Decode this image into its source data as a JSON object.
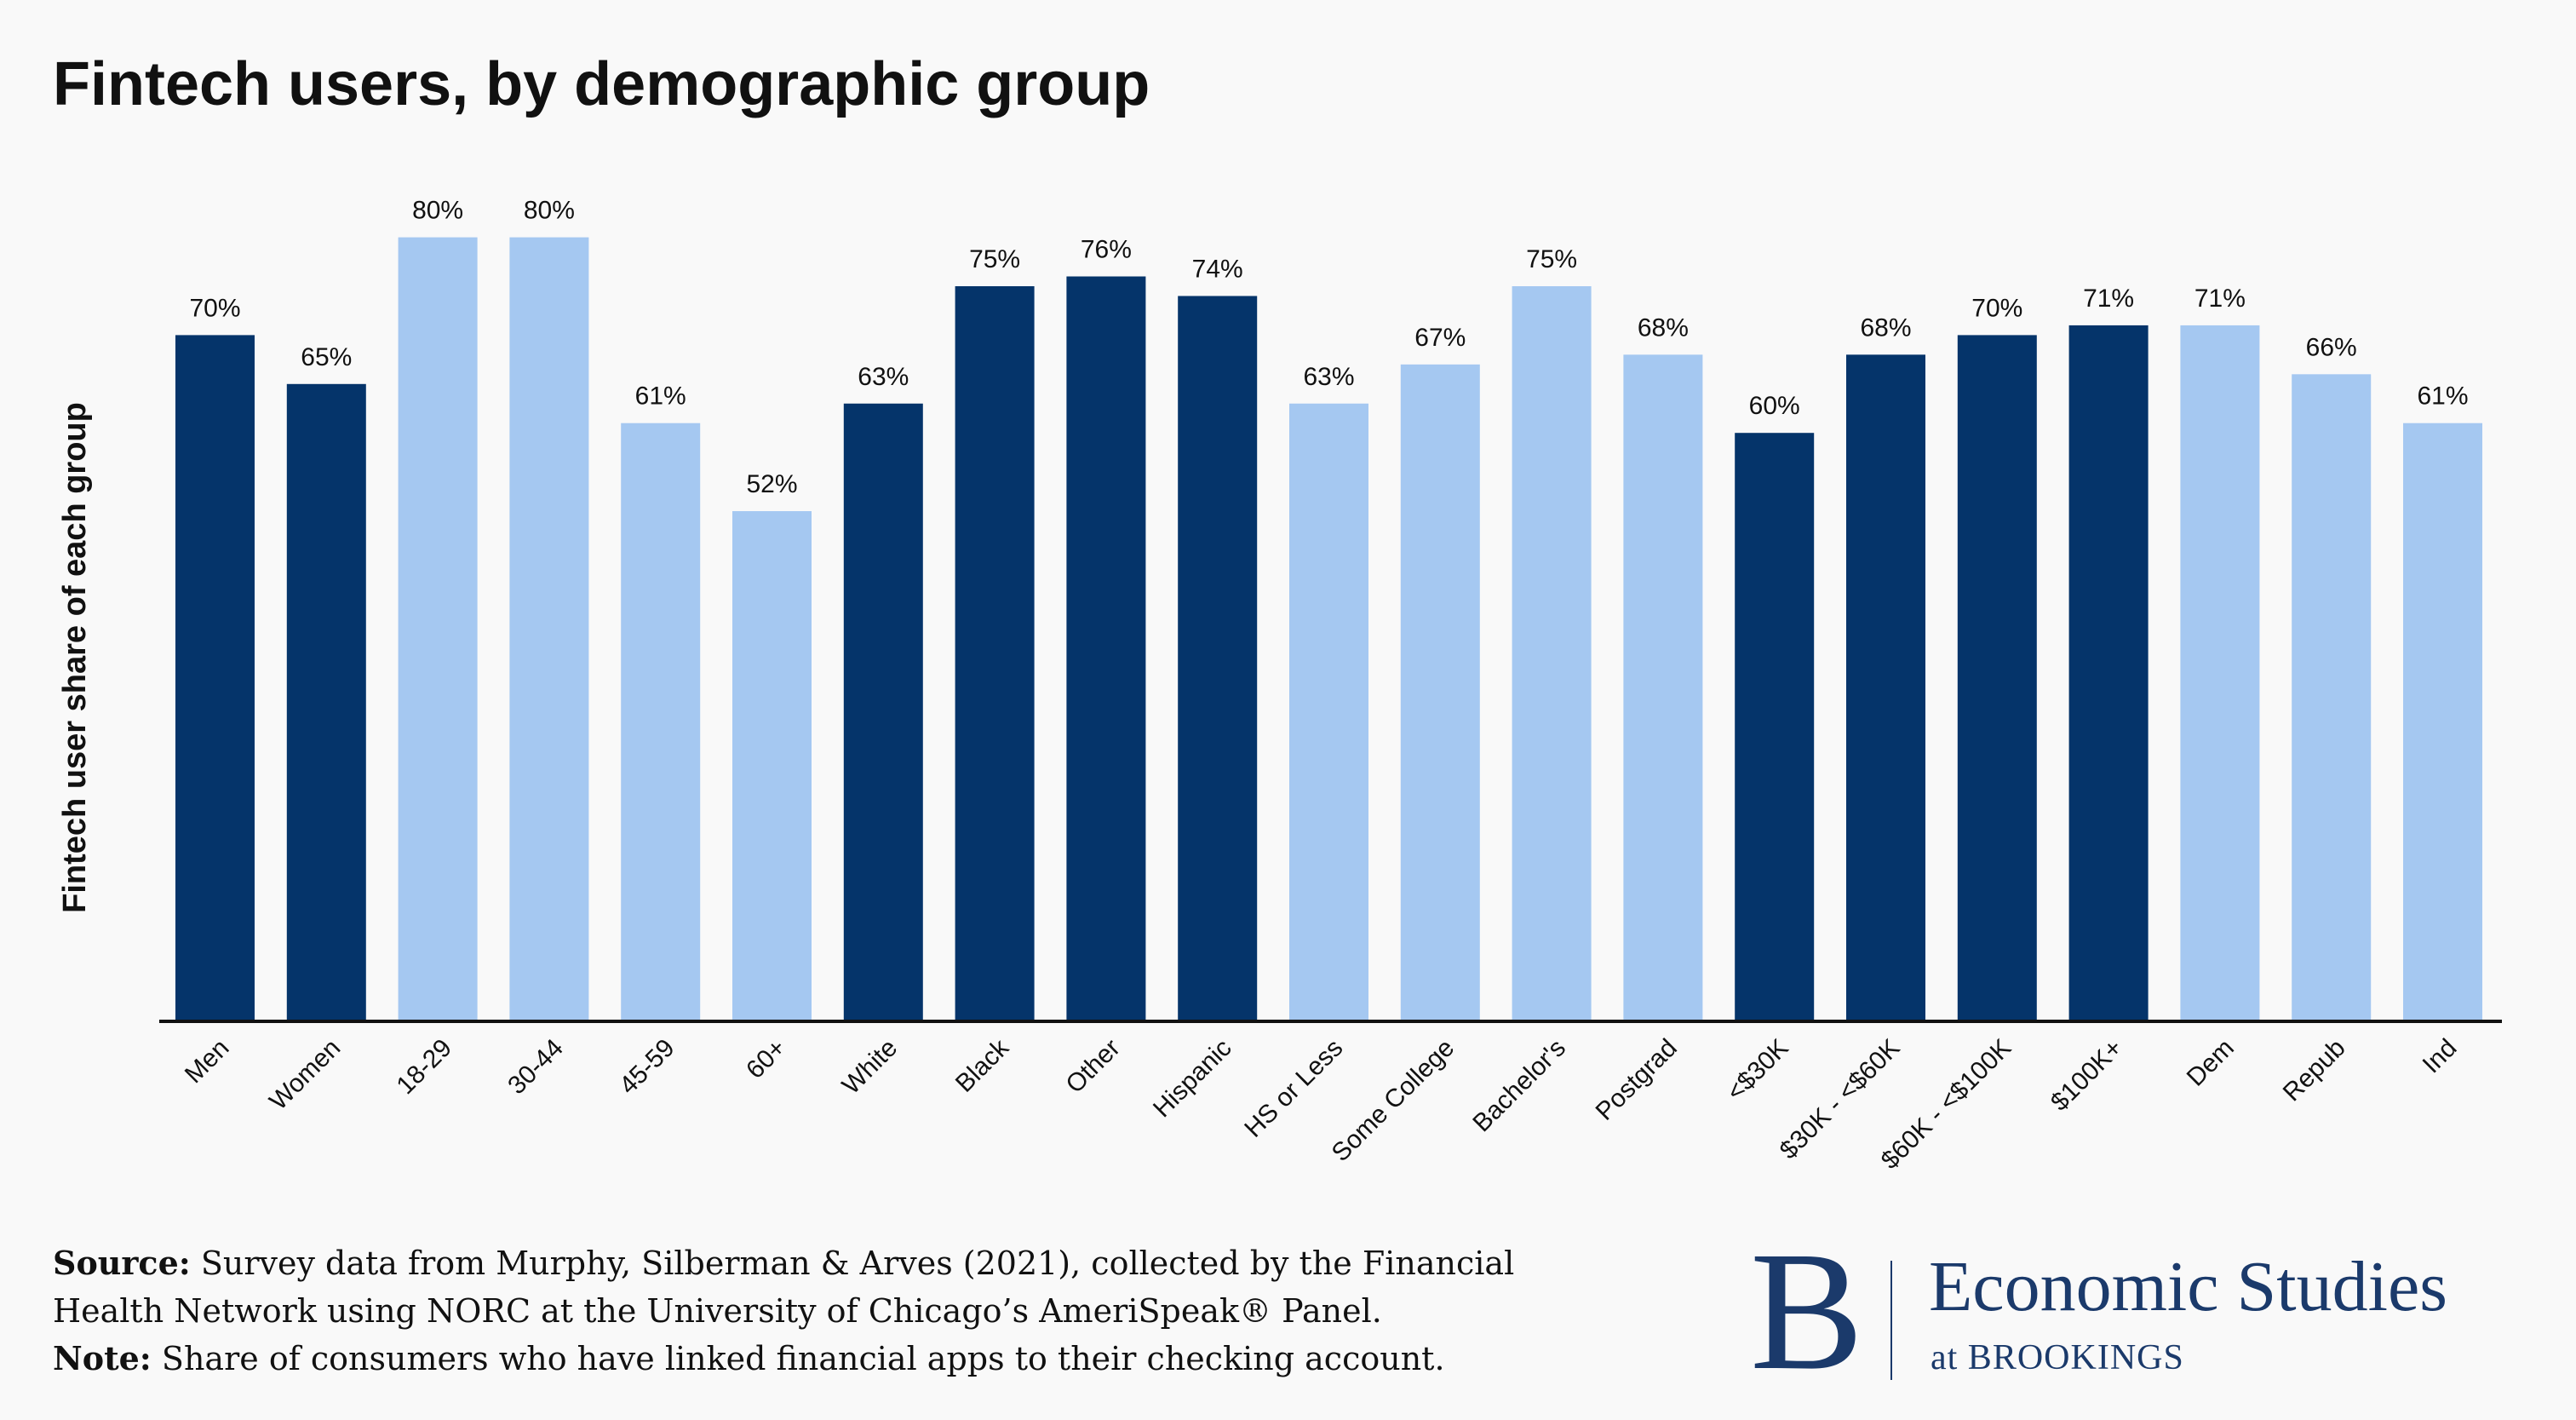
{
  "title": "Fintech users, by demographic group",
  "chart_data": {
    "type": "bar",
    "title": "Fintech users, by demographic group",
    "ylabel": "Fintech user share of each group",
    "xlabel": "",
    "ylim": [
      0,
      100
    ],
    "grid": false,
    "categories": [
      "Men",
      "Women",
      "18-29",
      "30-44",
      "45-59",
      "60+",
      "White",
      "Black",
      "Other",
      "Hispanic",
      "HS or Less",
      "Some College",
      "Bachelor's",
      "Postgrad",
      "<$30K",
      "$30K - <$60K",
      "$60K - <$100K",
      "$100K+",
      "Dem",
      "Repub",
      "Ind"
    ],
    "values": [
      70,
      65,
      80,
      80,
      61,
      52,
      63,
      75,
      76,
      74,
      63,
      67,
      75,
      68,
      60,
      68,
      70,
      71,
      71,
      66,
      61
    ],
    "labels": [
      "70%",
      "65%",
      "80%",
      "80%",
      "61%",
      "52%",
      "63%",
      "75%",
      "76%",
      "74%",
      "63%",
      "67%",
      "75%",
      "68%",
      "60%",
      "68%",
      "70%",
      "71%",
      "71%",
      "66%",
      "61%"
    ],
    "bar_colors": [
      "#05346a",
      "#05346a",
      "#a5c8f1",
      "#a5c8f1",
      "#a5c8f1",
      "#a5c8f1",
      "#05346a",
      "#05346a",
      "#05346a",
      "#05346a",
      "#a5c8f1",
      "#a5c8f1",
      "#a5c8f1",
      "#a5c8f1",
      "#05346a",
      "#05346a",
      "#05346a",
      "#05346a",
      "#a5c8f1",
      "#a5c8f1",
      "#a5c8f1"
    ]
  },
  "footer": {
    "source_label": "Source:",
    "source_text": " Survey data from Murphy, Silberman & Arves (2021), collected by the Financial",
    "source_text2": "Health Network using NORC at the University of Chicago’s AmeriSpeak® Panel.",
    "note_label": "Note:",
    "note_text": " Share of consumers who have linked financial apps to their checking account."
  },
  "logo": {
    "letter": "B",
    "name": "Economic Studies",
    "sub": "at BROOKINGS"
  }
}
